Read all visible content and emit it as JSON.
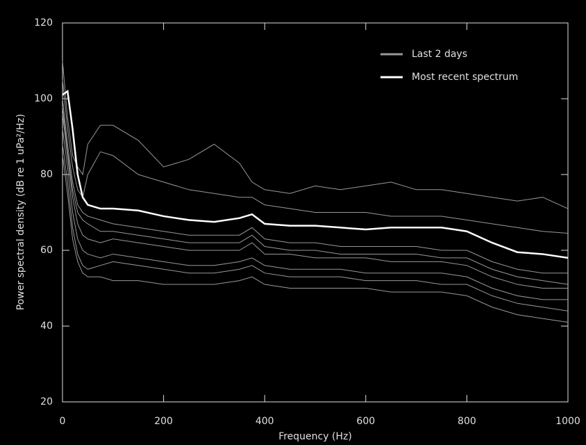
{
  "chart_data": {
    "type": "line",
    "x_label": "Frequency (Hz)",
    "y_label": "Power spectral density (dB re 1 uPa²/Hz)",
    "x": [
      0,
      10,
      20,
      30,
      40,
      50,
      75,
      100,
      150,
      200,
      250,
      300,
      350,
      375,
      400,
      450,
      500,
      550,
      600,
      650,
      700,
      750,
      800,
      850,
      900,
      950,
      1000
    ],
    "xlim": [
      0,
      1000
    ],
    "xticks": [
      0,
      200,
      400,
      600,
      800,
      1000
    ],
    "ylim": [
      20,
      120
    ],
    "yticks": [
      20,
      40,
      60,
      80,
      100,
      120
    ],
    "legend": "top-right",
    "series": [
      {
        "name": "Last 2 days",
        "color": "#999999",
        "values": [
          110,
          95,
          85,
          82,
          80,
          88,
          93,
          93,
          89,
          82,
          84,
          88,
          83,
          78,
          76,
          75,
          77,
          76,
          77,
          78,
          76,
          76,
          75,
          74,
          73,
          74,
          71
        ]
      },
      {
        "name": "Last 2 days",
        "color": "#999999",
        "values": [
          105,
          92,
          82,
          76,
          74,
          80,
          86,
          85,
          80,
          78,
          76,
          75,
          74,
          74,
          72,
          71,
          70,
          70,
          70,
          69,
          69,
          69,
          68,
          67,
          66,
          65,
          64.5
        ]
      },
      {
        "name": "Last 2 days",
        "color": "#999999",
        "values": [
          100,
          88,
          78,
          72,
          70,
          69,
          68,
          67,
          66,
          65,
          64,
          64,
          64,
          66,
          63,
          62,
          62,
          61,
          61,
          61,
          61,
          60,
          60,
          57,
          55,
          54,
          54
        ]
      },
      {
        "name": "Last 2 days",
        "color": "#999999",
        "values": [
          96,
          85,
          74,
          67,
          64,
          63,
          62,
          63,
          62,
          61,
          60,
          60,
          60,
          62,
          59,
          59,
          58,
          58,
          58,
          57,
          57,
          57,
          56,
          53,
          51,
          50,
          50
        ]
      },
      {
        "name": "Last 2 days",
        "color": "#999999",
        "values": [
          92,
          82,
          70,
          63,
          60,
          59,
          58,
          59,
          58,
          57,
          56,
          56,
          57,
          58,
          56,
          55,
          55,
          55,
          54,
          54,
          54,
          54,
          53,
          50,
          48,
          47,
          47
        ]
      },
      {
        "name": "Last 2 days",
        "color": "#999999",
        "values": [
          88,
          78,
          66,
          59,
          56,
          55,
          56,
          57,
          56,
          55,
          54,
          54,
          55,
          56,
          54,
          53,
          53,
          53,
          52,
          52,
          52,
          51,
          51,
          48,
          46,
          45,
          44
        ]
      },
      {
        "name": "Last 2 days",
        "color": "#999999",
        "values": [
          85,
          75,
          63,
          57,
          54,
          53,
          53,
          52,
          52,
          51,
          51,
          51,
          52,
          53,
          51,
          50,
          50,
          50,
          50,
          49,
          49,
          49,
          48,
          45,
          43,
          42,
          41
        ]
      },
      {
        "name": "Last 2 days",
        "color": "#999999",
        "values": [
          98,
          86,
          76,
          70,
          68,
          67,
          65,
          65,
          64,
          63,
          62,
          62,
          62,
          64,
          61,
          60,
          60,
          59,
          59,
          59,
          59,
          58,
          58,
          55,
          53,
          52,
          51
        ]
      },
      {
        "name": "Most recent spectrum",
        "color": "#ffffff",
        "values": [
          101,
          102,
          92,
          80,
          74,
          72,
          71,
          71,
          70.5,
          69,
          68,
          67.5,
          68.5,
          69.5,
          67,
          66.5,
          66.5,
          66,
          65.5,
          66,
          66,
          66,
          65,
          62,
          59.5,
          59,
          58
        ]
      }
    ]
  }
}
